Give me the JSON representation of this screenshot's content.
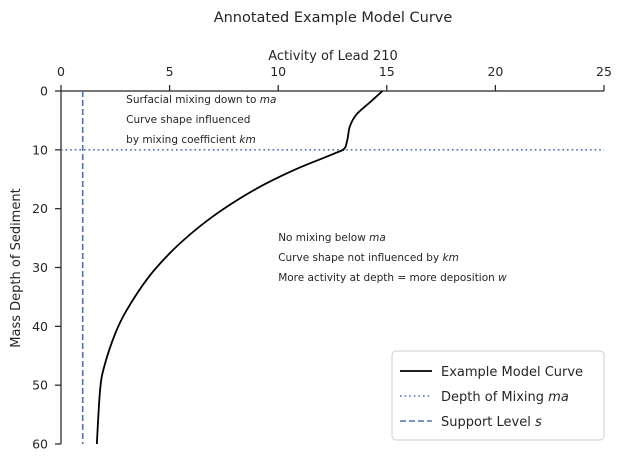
{
  "chart_data": {
    "type": "line",
    "title": "Annotated Example Model Curve",
    "xlabel": "Activity of Lead 210",
    "ylabel": "Mass Depth of Sediment",
    "xlim": [
      0,
      25
    ],
    "ylim": [
      0,
      60
    ],
    "y_inverted": true,
    "x_axis_position": "top",
    "x_ticks": [
      "0",
      "5",
      "10",
      "15",
      "20",
      "25"
    ],
    "y_ticks": [
      "0",
      "10",
      "20",
      "30",
      "40",
      "50",
      "60"
    ],
    "grid": false,
    "legend_position": "lower-right",
    "series": [
      {
        "name": "Example Model Curve",
        "style": "solid",
        "color": "#000000",
        "x": [
          14.8,
          14.2,
          13.6,
          13.3,
          13.2,
          13.1,
          13.0,
          12.0,
          11.0,
          10.0,
          9.0,
          8.0,
          7.0,
          6.0,
          5.0,
          4.0,
          3.0,
          2.5,
          2.0,
          1.8,
          1.65
        ],
        "y": [
          0,
          2,
          4,
          6,
          8,
          9.5,
          10,
          11.5,
          13,
          14.7,
          16.6,
          18.8,
          21.3,
          24.2,
          27.6,
          31.8,
          37.4,
          41.2,
          46.7,
          50.8,
          60
        ]
      },
      {
        "name": "Depth of Mixing ma",
        "style": "dotted",
        "color": "#4c72b0",
        "orientation": "horizontal",
        "y": 10
      },
      {
        "name": "Support Level s",
        "style": "dashed",
        "color": "#4c72b0",
        "orientation": "vertical",
        "x": 1.0
      }
    ],
    "annotations": [
      {
        "x": 3,
        "y": 2,
        "lines": [
          "Surfacial mixing down to ma",
          "Curve shape influenced",
          "by mixing coefficient km"
        ]
      },
      {
        "x": 10,
        "y": 25.5,
        "lines": [
          "No mixing below ma",
          "Curve shape not influenced by km",
          "More activity at depth = more deposition w"
        ]
      }
    ],
    "legend": [
      "Example Model Curve",
      "Depth of Mixing ma",
      "Support Level s"
    ]
  }
}
